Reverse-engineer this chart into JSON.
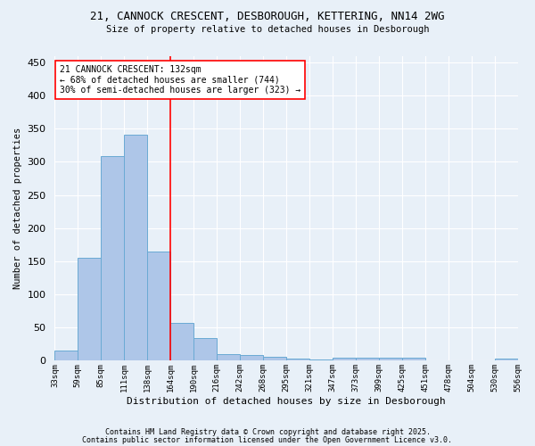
{
  "title1": "21, CANNOCK CRESCENT, DESBOROUGH, KETTERING, NN14 2WG",
  "title2": "Size of property relative to detached houses in Desborough",
  "xlabel": "Distribution of detached houses by size in Desborough",
  "ylabel": "Number of detached properties",
  "bar_values": [
    15,
    155,
    308,
    341,
    165,
    57,
    34,
    10,
    8,
    6,
    3,
    2,
    5,
    5,
    5,
    4,
    0,
    0,
    0,
    3
  ],
  "categories": [
    "33sqm",
    "59sqm",
    "85sqm",
    "111sqm",
    "138sqm",
    "164sqm",
    "190sqm",
    "216sqm",
    "242sqm",
    "268sqm",
    "295sqm",
    "321sqm",
    "347sqm",
    "373sqm",
    "399sqm",
    "425sqm",
    "451sqm",
    "478sqm",
    "504sqm",
    "530sqm",
    "556sqm"
  ],
  "bar_color": "#aec6e8",
  "bar_edgecolor": "#6aaad4",
  "bg_color": "#e8f0f8",
  "grid_color": "#ffffff",
  "vline_color": "red",
  "annotation_text": "21 CANNOCK CRESCENT: 132sqm\n← 68% of detached houses are smaller (744)\n30% of semi-detached houses are larger (323) →",
  "annotation_box_color": "white",
  "annotation_box_edgecolor": "red",
  "yticks": [
    0,
    50,
    100,
    150,
    200,
    250,
    300,
    350,
    400,
    450
  ],
  "ylim": [
    0,
    460
  ],
  "footer1": "Contains HM Land Registry data © Crown copyright and database right 2025.",
  "footer2": "Contains public sector information licensed under the Open Government Licence v3.0."
}
